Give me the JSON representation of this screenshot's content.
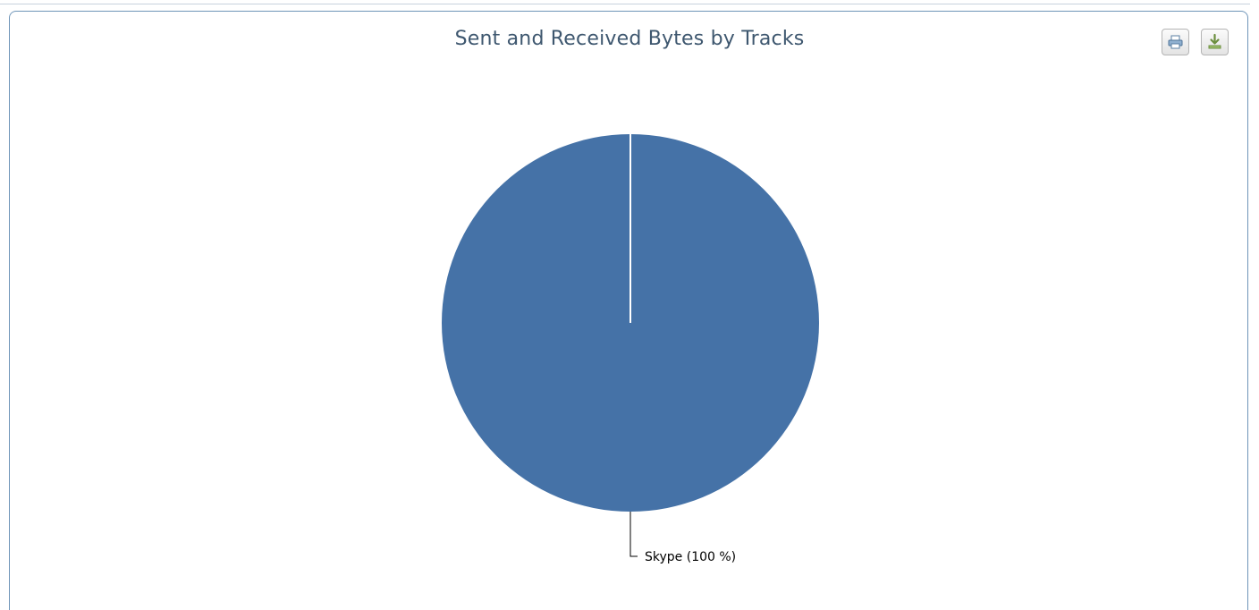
{
  "chart_data": {
    "type": "pie",
    "title": "Sent and Received Bytes by Tracks",
    "slices": [
      {
        "name": "Skype",
        "value": 100,
        "label": "Skype (100 %)",
        "color": "#4572a7"
      }
    ],
    "legend": "none"
  },
  "toolbar": {
    "print_icon": "printer-icon",
    "export_icon": "download-icon"
  },
  "colors": {
    "title": "#3e576f",
    "border": "#6f95b8",
    "slice": "#4572a7"
  }
}
